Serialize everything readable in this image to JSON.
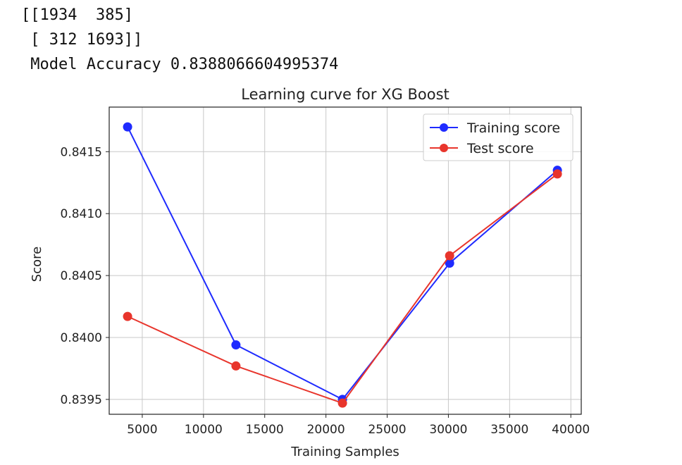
{
  "output": {
    "lines": [
      "[[1934  385]",
      " [ 312 1693]]",
      " Model Accuracy 0.8388066604995374"
    ]
  },
  "chart_data": {
    "type": "line",
    "title": "Learning curve for XG Boost",
    "xlabel": "Training Samples",
    "ylabel": "Score",
    "xlim": [
      2300,
      40850
    ],
    "ylim": [
      0.83938,
      0.84186
    ],
    "xticks": [
      5000,
      10000,
      15000,
      20000,
      25000,
      30000,
      35000,
      40000
    ],
    "yticks": [
      0.8395,
      0.84,
      0.8405,
      0.841,
      0.8415
    ],
    "ytick_labels": [
      "0.8395",
      "0.8400",
      "0.8405",
      "0.8410",
      "0.8415"
    ],
    "grid": true,
    "legend": "top-right",
    "x": [
      3800,
      12650,
      21350,
      30100,
      38900
    ],
    "series": [
      {
        "name": "Training score",
        "color": "#1f2bff",
        "values": [
          0.8417,
          0.83994,
          0.8395,
          0.8406,
          0.84135
        ]
      },
      {
        "name": "Test score",
        "color": "#e8352c",
        "values": [
          0.84017,
          0.83977,
          0.83947,
          0.84066,
          0.84132
        ]
      }
    ]
  }
}
